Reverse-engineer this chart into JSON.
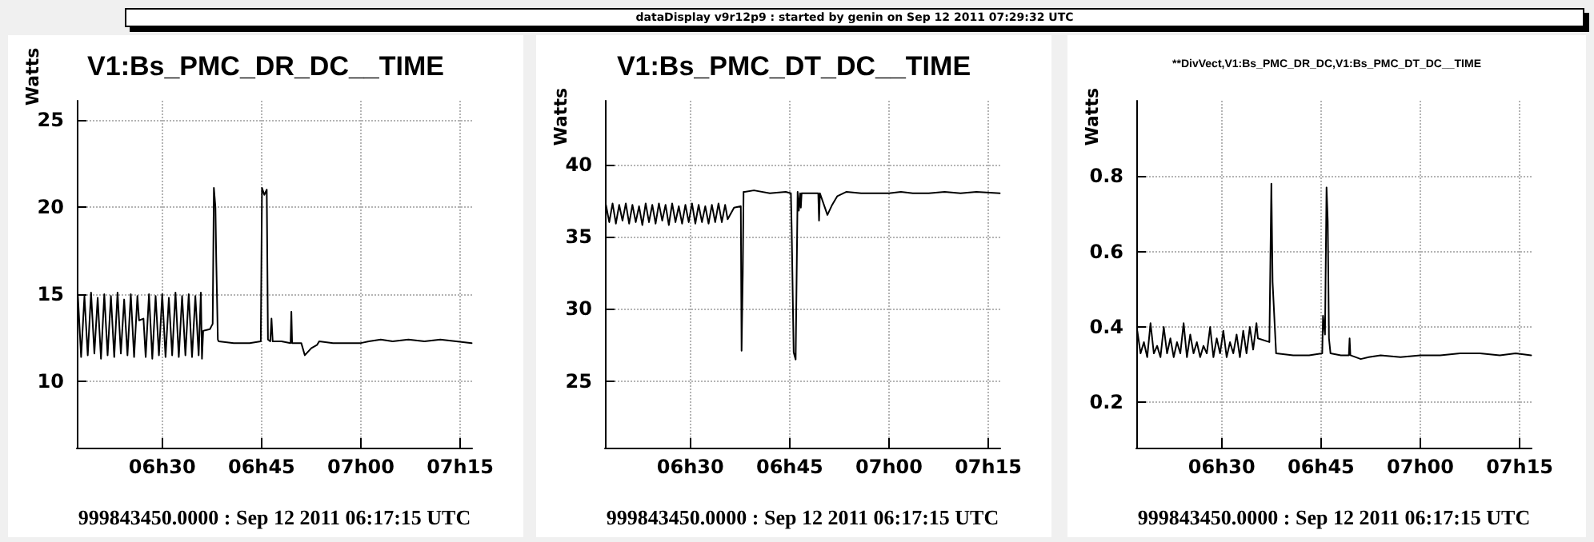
{
  "chart_data": [
    {
      "type": "other",
      "title": "dataDisplay v9r12p9 : started by genin on Sep 12 2011 07:29:32 UTC"
    },
    {
      "type": "line",
      "title": "V1:Bs_PMC_DR_DC__TIME",
      "xlabel": "999843450.0000 : Sep 12 2011 06:17:15 UTC",
      "ylabel": "Watts",
      "xlim": [
        "2011-09-12T06:17:06",
        "2011-09-12T07:16:48"
      ],
      "xticks": [
        {
          "value": "2011-09-12T06:30",
          "label": "06h30"
        },
        {
          "value": "2011-09-12T06:45",
          "label": "06h45"
        },
        {
          "value": "2011-09-12T07:00",
          "label": "07h00"
        },
        {
          "value": "2011-09-12T07:15",
          "label": "07h15"
        }
      ],
      "ylim": [
        6.2,
        26.1
      ],
      "yticks": [
        10,
        15,
        20,
        25
      ],
      "grid": true,
      "x": [
        "2011-09-12T06:17:15",
        "2011-09-12T06:17:45",
        "2011-09-12T06:18:15",
        "2011-09-12T06:18:45",
        "2011-09-12T06:19:15",
        "2011-09-12T06:19:45",
        "2011-09-12T06:20:15",
        "2011-09-12T06:20:45",
        "2011-09-12T06:21:15",
        "2011-09-12T06:21:45",
        "2011-09-12T06:22:15",
        "2011-09-12T06:22:45",
        "2011-09-12T06:23:15",
        "2011-09-12T06:23:45",
        "2011-09-12T06:24:15",
        "2011-09-12T06:24:45",
        "2011-09-12T06:25:15",
        "2011-09-12T06:25:45",
        "2011-09-12T06:26:15",
        "2011-09-12T06:26:30",
        "2011-09-12T06:27:10",
        "2011-09-12T06:27:30",
        "2011-09-12T06:28:00",
        "2011-09-12T06:28:30",
        "2011-09-12T06:29:00",
        "2011-09-12T06:29:30",
        "2011-09-12T06:30:00",
        "2011-09-12T06:30:30",
        "2011-09-12T06:31:00",
        "2011-09-12T06:31:30",
        "2011-09-12T06:32:00",
        "2011-09-12T06:32:30",
        "2011-09-12T06:33:00",
        "2011-09-12T06:33:30",
        "2011-09-12T06:34:00",
        "2011-09-12T06:34:30",
        "2011-09-12T06:35:00",
        "2011-09-12T06:35:30",
        "2011-09-12T06:35:50",
        "2011-09-12T06:36:00",
        "2011-09-12T06:36:11",
        "2011-09-12T06:37:12",
        "2011-09-12T06:37:37",
        "2011-09-12T06:37:48",
        "2011-09-12T06:38:02",
        "2011-09-12T06:38:10",
        "2011-09-12T06:38:24",
        "2011-09-12T06:38:31",
        "2011-09-12T06:40:48",
        "2011-09-12T06:43:12",
        "2011-09-12T06:44:53",
        "2011-09-12T06:45:04",
        "2011-09-12T06:45:25",
        "2011-09-12T06:45:47",
        "2011-09-12T06:45:58",
        "2011-09-12T06:46:19",
        "2011-09-12T06:46:30",
        "2011-09-12T06:46:41",
        "2011-09-12T06:48:00",
        "2011-09-12T06:49:23",
        "2011-09-12T06:49:30",
        "2011-09-12T06:49:37",
        "2011-09-12T06:51:00",
        "2011-09-12T06:51:32",
        "2011-09-12T06:52:30",
        "2011-09-12T06:53:24",
        "2011-09-12T06:53:42",
        "2011-09-12T06:55:48",
        "2011-09-12T06:58:12",
        "2011-09-12T07:00:00",
        "2011-09-12T07:01:12",
        "2011-09-12T07:03:00",
        "2011-09-12T07:04:48",
        "2011-09-12T07:07:12",
        "2011-09-12T07:09:36",
        "2011-09-12T07:12:00",
        "2011-09-12T07:14:24",
        "2011-09-12T07:16:44"
      ],
      "series": [
        {
          "color": "#000000",
          "values": [
            15.0,
            11.4,
            14.9,
            11.5,
            15.1,
            11.6,
            14.8,
            11.3,
            15.0,
            11.5,
            14.9,
            11.4,
            15.1,
            11.6,
            14.7,
            11.5,
            15.0,
            11.4,
            14.9,
            13.5,
            13.6,
            11.4,
            15.0,
            11.3,
            14.9,
            11.5,
            15.0,
            11.4,
            14.8,
            11.5,
            15.1,
            11.4,
            14.9,
            11.5,
            15.0,
            11.4,
            14.9,
            11.5,
            15.1,
            11.3,
            12.9,
            13.0,
            13.3,
            21.1,
            20.0,
            16.8,
            12.4,
            12.3,
            12.2,
            12.2,
            12.3,
            21.1,
            20.7,
            21.0,
            12.4,
            12.3,
            13.6,
            12.3,
            12.3,
            12.2,
            14.0,
            12.2,
            12.2,
            11.5,
            11.9,
            12.1,
            12.3,
            12.2,
            12.2,
            12.2,
            12.3,
            12.4,
            12.3,
            12.4,
            12.3,
            12.4,
            12.3,
            12.2
          ]
        }
      ]
    },
    {
      "type": "line",
      "title": "V1:Bs_PMC_DT_DC__TIME",
      "xlabel": "999843450.0000 : Sep 12 2011 06:17:15 UTC",
      "ylabel": "Watts",
      "xlim": [
        "2011-09-12T06:17:06",
        "2011-09-12T07:16:48"
      ],
      "xticks": [
        {
          "value": "2011-09-12T06:30",
          "label": "06h30"
        },
        {
          "value": "2011-09-12T06:45",
          "label": "06h45"
        },
        {
          "value": "2011-09-12T07:00",
          "label": "07h00"
        },
        {
          "value": "2011-09-12T07:15",
          "label": "07h15"
        }
      ],
      "ylim": [
        20.4,
        44.4
      ],
      "yticks": [
        25,
        30,
        35,
        40
      ],
      "grid": true,
      "x": [
        "2011-09-12T06:17:15",
        "2011-09-12T06:17:45",
        "2011-09-12T06:18:15",
        "2011-09-12T06:18:45",
        "2011-09-12T06:19:15",
        "2011-09-12T06:19:45",
        "2011-09-12T06:20:15",
        "2011-09-12T06:20:45",
        "2011-09-12T06:21:15",
        "2011-09-12T06:21:45",
        "2011-09-12T06:22:15",
        "2011-09-12T06:22:45",
        "2011-09-12T06:23:15",
        "2011-09-12T06:23:45",
        "2011-09-12T06:24:15",
        "2011-09-12T06:24:45",
        "2011-09-12T06:25:15",
        "2011-09-12T06:25:45",
        "2011-09-12T06:26:15",
        "2011-09-12T06:26:45",
        "2011-09-12T06:27:15",
        "2011-09-12T06:27:45",
        "2011-09-12T06:28:15",
        "2011-09-12T06:28:45",
        "2011-09-12T06:29:15",
        "2011-09-12T06:29:45",
        "2011-09-12T06:30:15",
        "2011-09-12T06:30:45",
        "2011-09-12T06:31:15",
        "2011-09-12T06:31:45",
        "2011-09-12T06:32:15",
        "2011-09-12T06:32:45",
        "2011-09-12T06:33:15",
        "2011-09-12T06:33:45",
        "2011-09-12T06:34:15",
        "2011-09-12T06:34:45",
        "2011-09-12T06:35:15",
        "2011-09-12T06:35:38",
        "2011-09-12T06:36:36",
        "2011-09-12T06:37:37",
        "2011-09-12T06:37:44",
        "2011-09-12T06:37:55",
        "2011-09-12T06:38:02",
        "2011-09-12T06:38:13",
        "2011-09-12T06:39:36",
        "2011-09-12T06:42:00",
        "2011-09-12T06:44:24",
        "2011-09-12T06:45:11",
        "2011-09-12T06:45:18",
        "2011-09-12T06:45:36",
        "2011-09-12T06:45:54",
        "2011-09-12T06:46:12",
        "2011-09-12T06:46:23",
        "2011-09-12T06:46:34",
        "2011-09-12T06:46:41",
        "2011-09-12T06:46:48",
        "2011-09-12T06:48:00",
        "2011-09-12T06:49:19",
        "2011-09-12T06:49:26",
        "2011-09-12T06:49:34",
        "2011-09-12T06:50:42",
        "2011-09-12T06:51:25",
        "2011-09-12T06:52:12",
        "2011-09-12T06:53:35",
        "2011-09-12T06:55:48",
        "2011-09-12T06:58:12",
        "2011-09-12T07:00:00",
        "2011-09-12T07:01:48",
        "2011-09-12T07:03:36",
        "2011-09-12T07:06:00",
        "2011-09-12T07:08:24",
        "2011-09-12T07:10:48",
        "2011-09-12T07:13:12",
        "2011-09-12T07:16:44"
      ],
      "series": [
        {
          "color": "#000000",
          "values": [
            37.2,
            36.0,
            37.3,
            35.9,
            37.2,
            36.1,
            37.3,
            35.9,
            37.2,
            36.0,
            37.1,
            35.8,
            37.3,
            36.0,
            37.2,
            35.9,
            37.3,
            36.1,
            37.2,
            35.8,
            37.3,
            36.0,
            37.1,
            35.9,
            37.2,
            36.0,
            37.3,
            35.9,
            37.2,
            36.0,
            37.1,
            35.9,
            37.2,
            36.0,
            37.3,
            36.0,
            37.2,
            36.2,
            37.0,
            37.1,
            27.1,
            32.5,
            38.1,
            38.1,
            38.2,
            38.0,
            38.1,
            38.0,
            35.5,
            27.0,
            26.5,
            38.1,
            36.8,
            38.0,
            37.0,
            38.0,
            38.0,
            38.0,
            36.1,
            38.0,
            36.5,
            37.2,
            37.8,
            38.1,
            38.0,
            38.0,
            38.0,
            38.1,
            38.0,
            38.0,
            38.1,
            38.0,
            38.1,
            38.0
          ]
        }
      ]
    },
    {
      "type": "line",
      "title": "**DivVect,V1:Bs_PMC_DR_DC,V1:Bs_PMC_DT_DC__TIME",
      "xlabel": "999843450.0000 : Sep 12 2011 06:17:15 UTC",
      "ylabel": "Watts",
      "xlim": [
        "2011-09-12T06:17:06",
        "2011-09-12T07:16:48"
      ],
      "xticks": [
        {
          "value": "2011-09-12T06:30",
          "label": "06h30"
        },
        {
          "value": "2011-09-12T06:45",
          "label": "06h45"
        },
        {
          "value": "2011-09-12T07:00",
          "label": "07h00"
        },
        {
          "value": "2011-09-12T07:15",
          "label": "07h15"
        }
      ],
      "ylim": [
        0.08,
        1.0
      ],
      "yticks": [
        0.2,
        0.4,
        0.6,
        0.8
      ],
      "grid": true,
      "x": [
        "2011-09-12T06:17:15",
        "2011-09-12T06:17:45",
        "2011-09-12T06:18:15",
        "2011-09-12T06:18:45",
        "2011-09-12T06:19:15",
        "2011-09-12T06:19:45",
        "2011-09-12T06:20:15",
        "2011-09-12T06:20:45",
        "2011-09-12T06:21:15",
        "2011-09-12T06:21:45",
        "2011-09-12T06:22:15",
        "2011-09-12T06:22:45",
        "2011-09-12T06:23:15",
        "2011-09-12T06:23:45",
        "2011-09-12T06:24:15",
        "2011-09-12T06:24:45",
        "2011-09-12T06:25:15",
        "2011-09-12T06:25:45",
        "2011-09-12T06:26:15",
        "2011-09-12T06:26:45",
        "2011-09-12T06:27:15",
        "2011-09-12T06:27:45",
        "2011-09-12T06:28:15",
        "2011-09-12T06:28:45",
        "2011-09-12T06:29:15",
        "2011-09-12T06:29:45",
        "2011-09-12T06:30:15",
        "2011-09-12T06:30:45",
        "2011-09-12T06:31:15",
        "2011-09-12T06:31:45",
        "2011-09-12T06:32:15",
        "2011-09-12T06:32:45",
        "2011-09-12T06:33:15",
        "2011-09-12T06:33:45",
        "2011-09-12T06:34:15",
        "2011-09-12T06:34:45",
        "2011-09-12T06:35:15",
        "2011-09-12T06:35:28",
        "2011-09-12T06:37:12",
        "2011-09-12T06:37:30",
        "2011-09-12T06:37:41",
        "2011-09-12T06:37:48",
        "2011-09-12T06:38:13",
        "2011-09-12T06:40:48",
        "2011-09-12T06:43:12",
        "2011-09-12T06:45:11",
        "2011-09-12T06:45:18",
        "2011-09-12T06:45:36",
        "2011-09-12T06:45:50",
        "2011-09-12T06:46:01",
        "2011-09-12T06:46:12",
        "2011-09-12T06:46:26",
        "2011-09-12T06:48:00",
        "2011-09-12T06:49:12",
        "2011-09-12T06:49:19",
        "2011-09-12T06:49:26",
        "2011-09-12T06:51:00",
        "2011-09-12T06:52:12",
        "2011-09-12T06:54:00",
        "2011-09-12T06:57:00",
        "2011-09-12T07:00:00",
        "2011-09-12T07:03:00",
        "2011-09-12T07:06:00",
        "2011-09-12T07:09:00",
        "2011-09-12T07:12:00",
        "2011-09-12T07:14:24",
        "2011-09-12T07:16:44"
      ],
      "series": [
        {
          "color": "#000000",
          "values": [
            0.39,
            0.33,
            0.36,
            0.32,
            0.41,
            0.33,
            0.35,
            0.32,
            0.4,
            0.33,
            0.37,
            0.32,
            0.36,
            0.33,
            0.41,
            0.32,
            0.38,
            0.33,
            0.36,
            0.32,
            0.35,
            0.33,
            0.4,
            0.32,
            0.37,
            0.33,
            0.39,
            0.32,
            0.36,
            0.33,
            0.38,
            0.32,
            0.39,
            0.33,
            0.4,
            0.34,
            0.41,
            0.37,
            0.36,
            0.78,
            0.52,
            0.52,
            0.33,
            0.325,
            0.325,
            0.33,
            0.43,
            0.38,
            0.77,
            0.68,
            0.37,
            0.33,
            0.325,
            0.325,
            0.37,
            0.325,
            0.315,
            0.32,
            0.325,
            0.32,
            0.325,
            0.325,
            0.33,
            0.33,
            0.325,
            0.33,
            0.325
          ]
        }
      ]
    }
  ]
}
